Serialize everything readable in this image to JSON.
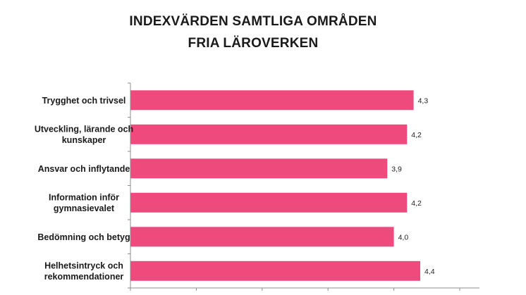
{
  "chart_data": {
    "type": "bar",
    "orientation": "horizontal",
    "title": [
      "INDEXVÄRDEN SAMTLIGA OMRÅDEN",
      "FRIA LÄROVERKEN"
    ],
    "categories": [
      [
        "Trygghet och trivsel"
      ],
      [
        "Utveckling, lärande och",
        "kunskaper"
      ],
      [
        "Ansvar och inflytande"
      ],
      [
        "Information inför",
        "gymnasievalet"
      ],
      [
        "Bedömning och betyg"
      ],
      [
        "Helhetsintryck och",
        "rekommendationer"
      ]
    ],
    "values": [
      4.3,
      4.2,
      3.9,
      4.2,
      4.0,
      4.4
    ],
    "value_labels": [
      "4,3",
      "4,2",
      "3,9",
      "4,2",
      "4,0",
      "4,4"
    ],
    "xlim": [
      0,
      5.3
    ],
    "x_ticks": [
      0,
      1,
      2,
      3,
      4,
      5
    ],
    "show_tick_labels": false,
    "grid": false,
    "legend": "none",
    "bar_color": "#ee4a7e",
    "axis_color": "#8c8c8c"
  }
}
